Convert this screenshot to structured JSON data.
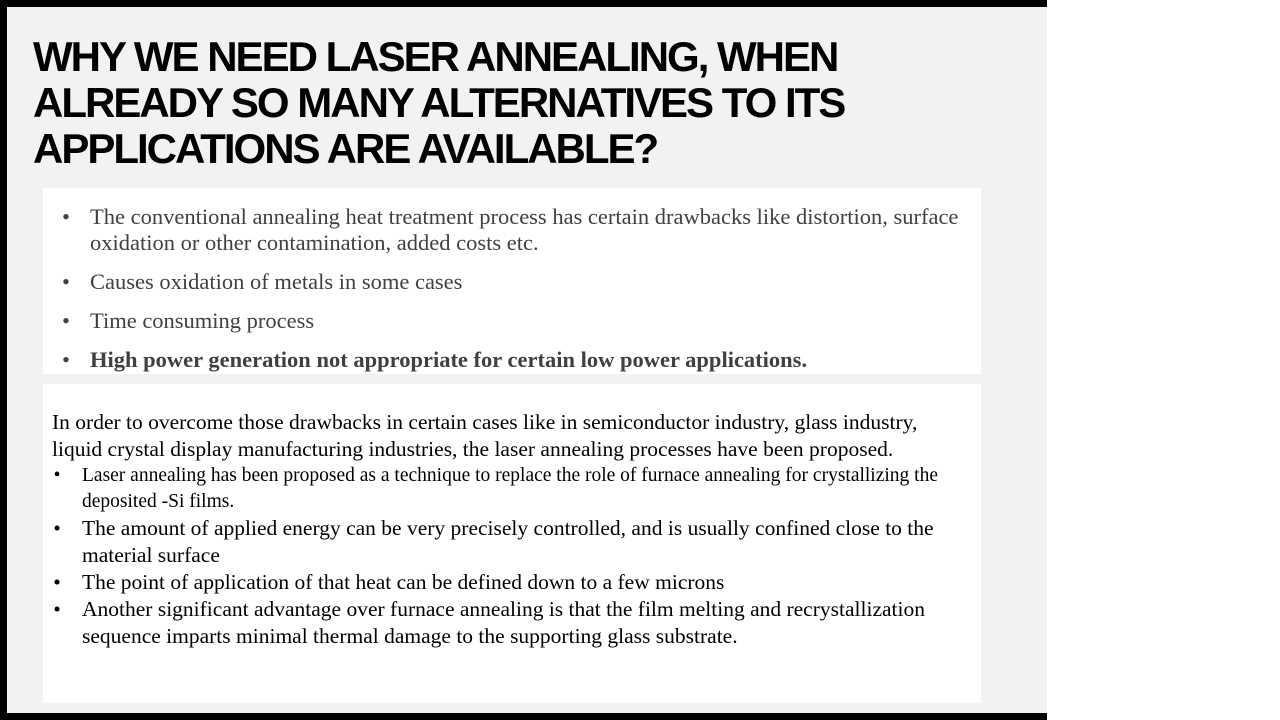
{
  "slide": {
    "title": "WHY WE NEED LASER ANNEALING, WHEN ALREADY SO MANY ALTERNATIVES TO ITS APPLICATIONS ARE AVAILABLE?",
    "bullet_glyph": "•",
    "drawbacks": [
      "The conventional annealing heat treatment process has certain drawbacks like distortion, surface oxidation or other contamination, added costs etc.",
      "Causes oxidation of metals in some cases",
      "Time consuming process",
      "High power generation not appropriate for certain low power applications."
    ],
    "intro": "In order to overcome those drawbacks in certain cases like in semiconductor industry, glass industry, liquid crystal display manufacturing industries, the laser annealing processes have been proposed.",
    "advantages": [
      "Laser annealing has been proposed as a technique to replace the role of furnace annealing for crystallizing the deposited -Si films.",
      "The amount of applied energy can be very precisely controlled, and is usually confined close to the material surface",
      "The point of application of that heat can be defined down to a few microns",
      "Another significant advantage over furnace annealing is that the film melting and recrystallization sequence imparts minimal thermal damage to the supporting glass substrate."
    ]
  },
  "colors": {
    "frame": "#000000",
    "slide_background": "#f2f2f2",
    "panel_background": "#ffffff",
    "title_text": "#000000",
    "drawback_text": "#404040",
    "body_text": "#000000"
  }
}
